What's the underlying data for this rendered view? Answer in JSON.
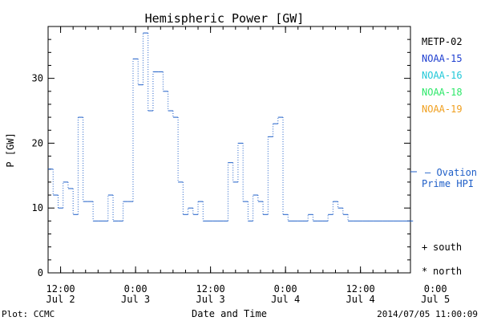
{
  "chart_data": {
    "type": "line",
    "title": "Hemispheric Power [GW]",
    "xlabel": "Date and Time",
    "ylabel": "P [GW]",
    "ylim": [
      0,
      38
    ],
    "xlim": [
      10,
      68
    ],
    "y_ticks": [
      0,
      10,
      20,
      30
    ],
    "x_ticks": [
      {
        "x": 12,
        "line1": "12:00",
        "line2": "Jul 2"
      },
      {
        "x": 24,
        "line1": "0:00",
        "line2": "Jul 3"
      },
      {
        "x": 36,
        "line1": "12:00",
        "line2": "Jul 3"
      },
      {
        "x": 48,
        "line1": "0:00",
        "line2": "Jul 4"
      },
      {
        "x": 60,
        "line1": "12:00",
        "line2": "Jul 4"
      },
      {
        "x": 72,
        "line1": "0:00",
        "line2": "Jul 5"
      }
    ],
    "x_minor_step": 2,
    "grid": false,
    "legend_position": "right",
    "legend": [
      {
        "label": "METP-02",
        "color": "#000000"
      },
      {
        "label": "NOAA-15",
        "color": "#1f3fd0"
      },
      {
        "label": "NOAA-16",
        "color": "#22c8d8"
      },
      {
        "label": "NOAA-18",
        "color": "#2ee86a"
      },
      {
        "label": "NOAA-19",
        "color": "#f0a020"
      }
    ],
    "ovation": {
      "label_line1": "– Ovation",
      "label_line2": "Prime HPI",
      "color": "#1f5fc8"
    },
    "markers_legend": [
      {
        "symbol": "+",
        "label": "south"
      },
      {
        "symbol": "*",
        "label": "north"
      }
    ],
    "series": [
      {
        "color": "#1f5fc8",
        "x": [
          10.0,
          10.8,
          11.6,
          12.4,
          13.2,
          14.0,
          14.8,
          15.6,
          16.4,
          17.2,
          18.0,
          18.8,
          19.6,
          20.4,
          21.2,
          22.0,
          22.8,
          23.6,
          24.4,
          25.2,
          26.0,
          26.8,
          27.6,
          28.4,
          29.2,
          30.0,
          30.8,
          31.6,
          32.4,
          33.2,
          34.0,
          34.8,
          35.6,
          36.4,
          37.2,
          38.0,
          38.8,
          39.6,
          40.4,
          41.2,
          42.0,
          42.8,
          43.6,
          44.4,
          45.2,
          46.0,
          46.8,
          47.6,
          48.4,
          49.2,
          50.0,
          50.8,
          51.6,
          52.4,
          53.2,
          54.0,
          54.8,
          55.6,
          56.4,
          57.2,
          58.0,
          58.8,
          59.6,
          60.4,
          61.2,
          62.0,
          62.8,
          63.6,
          64.4,
          65.2,
          66.0,
          66.8,
          67.6,
          68.4
        ],
        "y": [
          16,
          12,
          10,
          14,
          13,
          9,
          24,
          11,
          11,
          8,
          8,
          8,
          12,
          8,
          8,
          11,
          11,
          33,
          29,
          37,
          25,
          31,
          31,
          28,
          25,
          24,
          14,
          9,
          10,
          9,
          11,
          8,
          8,
          8,
          8,
          8,
          17,
          14,
          20,
          11,
          8,
          12,
          11,
          9,
          21,
          23,
          24,
          9,
          8,
          8,
          8,
          8,
          9,
          8,
          8,
          8,
          9,
          11,
          10,
          9,
          8,
          8,
          8,
          8,
          8,
          8,
          8,
          8,
          8,
          8,
          8,
          8,
          8,
          8
        ]
      }
    ]
  },
  "footer": {
    "plot_source": "Plot: CCMC",
    "timestamp": "2014/07/05 11:00:09"
  }
}
